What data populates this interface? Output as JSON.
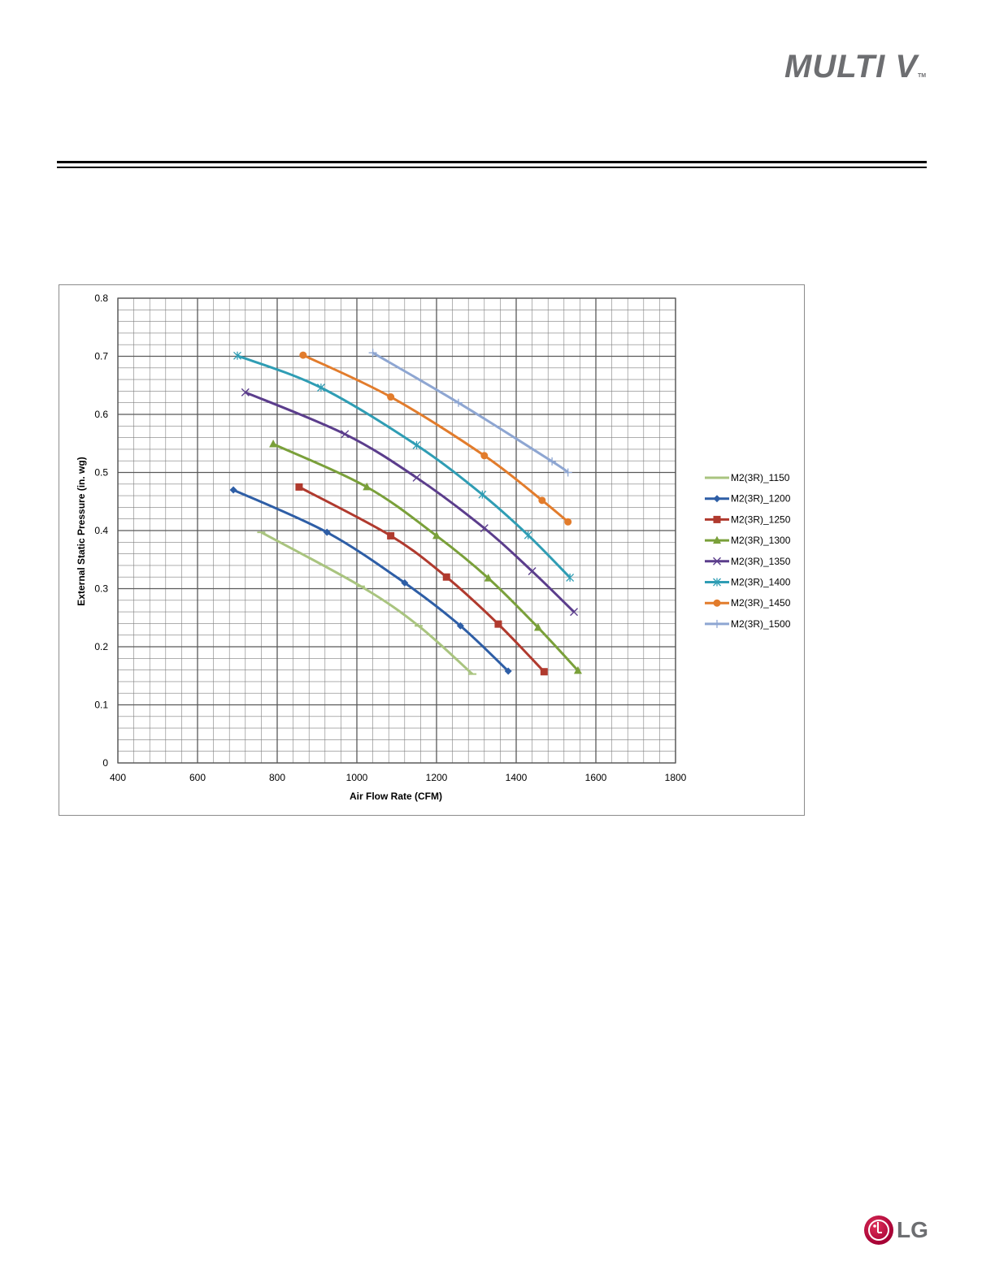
{
  "brand": {
    "product_logo": "MULTI V",
    "trademark": "TM",
    "company_logo": "LG"
  },
  "colors": {
    "rule": "#000000",
    "grid": "#7f7f7f",
    "frame": "#8c8c8c",
    "lg_red": "#a50034",
    "logo_gray": "#6d6e71"
  },
  "chart_data": {
    "type": "line",
    "title": "",
    "xlabel": "Air Flow Rate (CFM)",
    "ylabel": "External Static Pressure (in. wg)",
    "xlim": [
      400,
      1800
    ],
    "ylim": [
      0,
      0.8
    ],
    "x_ticks": [
      "400",
      "600",
      "800",
      "1000",
      "1200",
      "1400",
      "1600",
      "1800"
    ],
    "y_ticks": [
      "0",
      "0.1",
      "0.2",
      "0.3",
      "0.4",
      "0.5",
      "0.6",
      "0.7",
      "0.8"
    ],
    "grid": true,
    "legend_position": "right",
    "series": [
      {
        "name": "M2(3R)_1150",
        "color": "#a9c47f",
        "marker": "dash",
        "points": [
          [
            760,
            0.397
          ],
          [
            1010,
            0.304
          ],
          [
            1155,
            0.236
          ],
          [
            1290,
            0.153
          ]
        ]
      },
      {
        "name": "M2(3R)_1200",
        "color": "#2e5ea6",
        "marker": "diamond",
        "points": [
          [
            690,
            0.47
          ],
          [
            925,
            0.397
          ],
          [
            1120,
            0.31
          ],
          [
            1260,
            0.236
          ],
          [
            1380,
            0.158
          ]
        ]
      },
      {
        "name": "M2(3R)_1250",
        "color": "#b03a2e",
        "marker": "square",
        "points": [
          [
            855,
            0.475
          ],
          [
            1085,
            0.391
          ],
          [
            1225,
            0.32
          ],
          [
            1355,
            0.239
          ],
          [
            1470,
            0.157
          ]
        ]
      },
      {
        "name": "M2(3R)_1300",
        "color": "#7aa03a",
        "marker": "triangle",
        "points": [
          [
            790,
            0.549
          ],
          [
            1025,
            0.475
          ],
          [
            1200,
            0.391
          ],
          [
            1330,
            0.318
          ],
          [
            1455,
            0.233
          ],
          [
            1555,
            0.159
          ]
        ]
      },
      {
        "name": "M2(3R)_1350",
        "color": "#5b3d8c",
        "marker": "x",
        "points": [
          [
            720,
            0.638
          ],
          [
            970,
            0.566
          ],
          [
            1150,
            0.491
          ],
          [
            1320,
            0.404
          ],
          [
            1440,
            0.33
          ],
          [
            1545,
            0.26
          ]
        ]
      },
      {
        "name": "M2(3R)_1400",
        "color": "#2f9db4",
        "marker": "asterisk",
        "points": [
          [
            700,
            0.701
          ],
          [
            910,
            0.646
          ],
          [
            1150,
            0.547
          ],
          [
            1315,
            0.462
          ],
          [
            1430,
            0.392
          ],
          [
            1535,
            0.319
          ]
        ]
      },
      {
        "name": "M2(3R)_1450",
        "color": "#e27c2c",
        "marker": "circle",
        "points": [
          [
            865,
            0.702
          ],
          [
            1085,
            0.63
          ],
          [
            1320,
            0.529
          ],
          [
            1465,
            0.452
          ],
          [
            1530,
            0.415
          ]
        ]
      },
      {
        "name": "M2(3R)_1500",
        "color": "#8ea6d2",
        "marker": "plus",
        "points": [
          [
            1040,
            0.706
          ],
          [
            1255,
            0.62
          ],
          [
            1490,
            0.519
          ],
          [
            1530,
            0.5
          ]
        ]
      }
    ]
  }
}
